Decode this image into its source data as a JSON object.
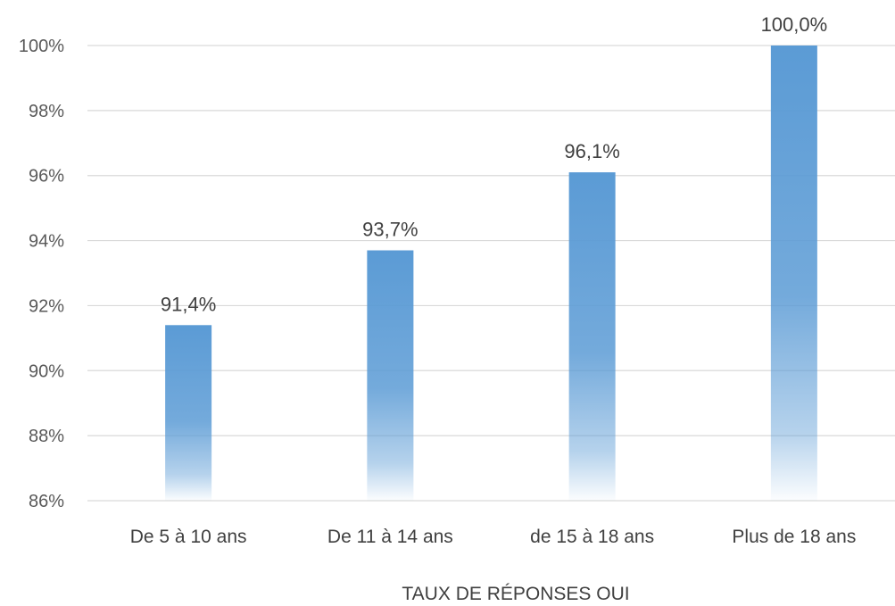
{
  "chart_data": {
    "type": "bar",
    "title": "",
    "xlabel": "TAUX DE RÉPONSES OUI",
    "ylabel": "",
    "categories": [
      "De 5 à 10 ans",
      "De 11 à 14 ans",
      "de 15 à 18 ans",
      "Plus de 18 ans"
    ],
    "values": [
      91.4,
      93.7,
      96.1,
      100.0
    ],
    "value_labels": [
      "91,4%",
      "93,7%",
      "96,1%",
      "100,0%"
    ],
    "ylim": [
      86,
      100
    ],
    "yticks": [
      86,
      88,
      90,
      92,
      94,
      96,
      98,
      100
    ],
    "ytick_labels": [
      "86%",
      "88%",
      "90%",
      "92%",
      "94%",
      "96%",
      "98%",
      "100%"
    ],
    "grid": true,
    "legend": "none",
    "bar_color": "#5b9bd5",
    "grid_color": "#d9d9d9"
  }
}
